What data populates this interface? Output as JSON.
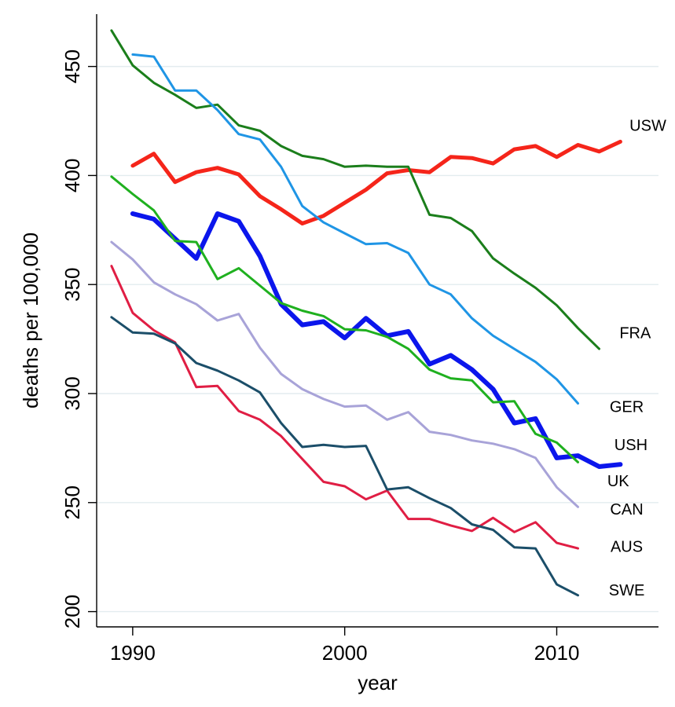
{
  "chart_data": {
    "type": "line",
    "xlabel": "year",
    "ylabel": "deaths per 100,000",
    "xlim": [
      1988.3,
      2014.8
    ],
    "ylim": [
      193,
      474
    ],
    "xticks": [
      1990,
      2000,
      2010
    ],
    "yticks": [
      200,
      250,
      300,
      350,
      400,
      450
    ],
    "grid": true,
    "series": [
      {
        "name": "USW",
        "color": "#f5251a",
        "stroke_width": 5,
        "x": [
          1990,
          1991,
          1992,
          1993,
          1994,
          1995,
          1996,
          1997,
          1998,
          1999,
          2000,
          2001,
          2002,
          2003,
          2004,
          2005,
          2006,
          2007,
          2008,
          2009,
          2010,
          2011,
          2012,
          2013
        ],
        "y": [
          404.5,
          410,
          397,
          401.5,
          403.5,
          400.5,
          390.5,
          384.5,
          378,
          381.5,
          387.5,
          393.5,
          401,
          402.5,
          401.5,
          408.5,
          408,
          405.5,
          412,
          413.5,
          408.5,
          414,
          411,
          415.5
        ]
      },
      {
        "name": "FRA",
        "color": "#1b7e1b",
        "stroke_width": 3,
        "x": [
          1989,
          1990,
          1991,
          1992,
          1993,
          1994,
          1995,
          1996,
          1997,
          1998,
          1999,
          2000,
          2001,
          2002,
          2003,
          2004,
          2005,
          2006,
          2007,
          2008,
          2009,
          2010,
          2011,
          2012
        ],
        "y": [
          466.5,
          450.5,
          442.5,
          437,
          431,
          432.5,
          423,
          420.5,
          413.5,
          409,
          407.5,
          404,
          404.5,
          404,
          404,
          382,
          380.5,
          374.5,
          362,
          355,
          348.5,
          340.5,
          330,
          320.5
        ]
      },
      {
        "name": "GER",
        "color": "#1f95e5",
        "stroke_width": 3,
        "x": [
          1990,
          1991,
          1992,
          1993,
          1994,
          1995,
          1996,
          1997,
          1998,
          1999,
          2000,
          2001,
          2002,
          2003,
          2004,
          2005,
          2006,
          2007,
          2008,
          2009,
          2010,
          2011
        ],
        "y": [
          455.5,
          454.5,
          439,
          439,
          430,
          419,
          416.5,
          404,
          386,
          378.5,
          373.5,
          368.5,
          369,
          364.5,
          350,
          345.5,
          334.5,
          326.5,
          320.5,
          314.5,
          306.5,
          295.5
        ]
      },
      {
        "name": "USH",
        "color": "#0b16ec",
        "stroke_width": 6,
        "x": [
          1990,
          1991,
          1992,
          1993,
          1994,
          1995,
          1996,
          1997,
          1998,
          1999,
          2000,
          2001,
          2002,
          2003,
          2004,
          2005,
          2006,
          2007,
          2008,
          2009,
          2010,
          2011,
          2012,
          2013
        ],
        "y": [
          382.5,
          380,
          371,
          362,
          382.5,
          379,
          363,
          341,
          331.5,
          333,
          325.5,
          334.5,
          326.5,
          328.5,
          313.5,
          317.5,
          311,
          302,
          286.5,
          288.5,
          270.5,
          271.5,
          266.5,
          267.5
        ]
      },
      {
        "name": "UK",
        "color": "#1fb01f",
        "stroke_width": 3,
        "x": [
          1989,
          1990,
          1991,
          1992,
          1993,
          1994,
          1995,
          1996,
          1997,
          1998,
          1999,
          2000,
          2001,
          2002,
          2003,
          2004,
          2005,
          2006,
          2007,
          2008,
          2009,
          2010,
          2011
        ],
        "y": [
          399.5,
          391.5,
          384,
          370,
          369.5,
          352.5,
          357.5,
          349.5,
          341.5,
          338,
          335.5,
          329.5,
          329,
          326,
          320.5,
          311,
          307,
          306,
          296,
          296.5,
          281.5,
          277.5,
          268.5
        ]
      },
      {
        "name": "CAN",
        "color": "#a8a3d8",
        "stroke_width": 3,
        "x": [
          1989,
          1990,
          1991,
          1992,
          1993,
          1994,
          1995,
          1996,
          1997,
          1998,
          1999,
          2000,
          2001,
          2002,
          2003,
          2004,
          2005,
          2006,
          2007,
          2008,
          2009,
          2010,
          2011
        ],
        "y": [
          369.5,
          361.5,
          351,
          345.5,
          341,
          333.5,
          336.5,
          321,
          309,
          302,
          297.5,
          294,
          294.5,
          288,
          291.5,
          282.5,
          281,
          278.5,
          277,
          274.5,
          270.5,
          257,
          248
        ]
      },
      {
        "name": "AUS",
        "color": "#e01e44",
        "stroke_width": 3,
        "x": [
          1989,
          1990,
          1991,
          1992,
          1993,
          1994,
          1995,
          1996,
          1997,
          1998,
          1999,
          2000,
          2001,
          2002,
          2003,
          2004,
          2005,
          2006,
          2007,
          2008,
          2009,
          2010,
          2011
        ],
        "y": [
          358.5,
          337,
          329,
          323.5,
          303,
          303.5,
          292,
          288,
          280.5,
          270,
          259.5,
          257.5,
          251.5,
          255.5,
          242.5,
          242.5,
          239.5,
          237,
          243,
          236.5,
          241,
          231.5,
          229
        ]
      },
      {
        "name": "SWE",
        "color": "#1b4e69",
        "stroke_width": 3,
        "x": [
          1989,
          1990,
          1991,
          1992,
          1993,
          1994,
          1995,
          1996,
          1997,
          1998,
          1999,
          2000,
          2001,
          2002,
          2003,
          2004,
          2005,
          2006,
          2007,
          2008,
          2009,
          2010,
          2011
        ],
        "y": [
          335,
          328,
          327.5,
          323,
          314,
          310.5,
          306,
          300.5,
          286.5,
          275.5,
          276.5,
          275.5,
          276,
          256,
          257,
          252,
          247.5,
          240,
          237.5,
          229.5,
          229,
          212.5,
          207.5
        ]
      }
    ],
    "annotations": [
      {
        "text": "USW",
        "x": 2014.3,
        "y": 423
      },
      {
        "text": "FRA",
        "x": 2013.7,
        "y": 328
      },
      {
        "text": "GER",
        "x": 2013.3,
        "y": 294
      },
      {
        "text": "USH",
        "x": 2013.5,
        "y": 276.5
      },
      {
        "text": "UK",
        "x": 2012.9,
        "y": 260
      },
      {
        "text": "CAN",
        "x": 2013.3,
        "y": 247
      },
      {
        "text": "AUS",
        "x": 2013.3,
        "y": 230
      },
      {
        "text": "SWE",
        "x": 2013.3,
        "y": 210
      }
    ]
  }
}
